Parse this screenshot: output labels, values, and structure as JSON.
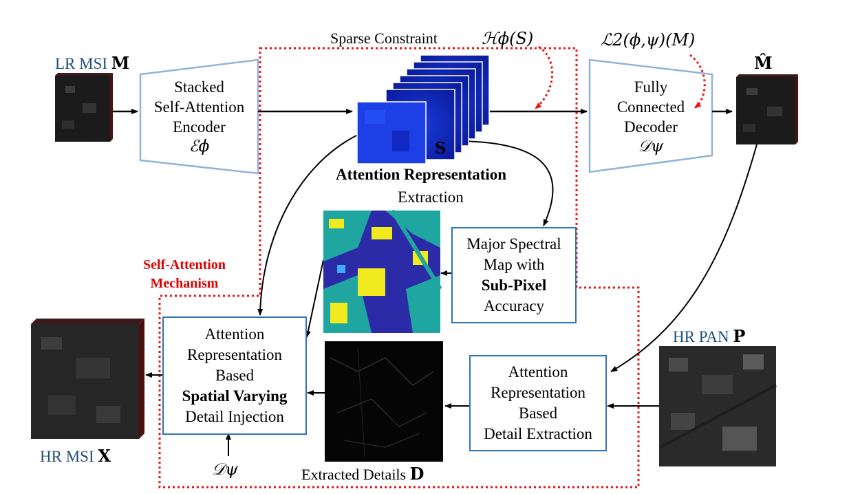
{
  "labels": {
    "lr_msi_text": "LR MSI",
    "lr_msi_symbol": "M",
    "sparse_constraint": "Sparse Constraint",
    "h_phi_s": "ℋϕ(S)",
    "loss": "ℒ2(ϕ,ψ)(M)",
    "m_hat": "M̂",
    "encoder_line1": "Stacked",
    "encoder_line2": "Self-Attention",
    "encoder_line3": "Encoder",
    "encoder_symbol": "ℰϕ",
    "s_symbol": "S",
    "attention_rep_bold": "Attention Representation",
    "extraction": "Extraction",
    "decoder_line1": "Fully",
    "decoder_line2": "Connected",
    "decoder_line3": "Decoder",
    "decoder_symbol": "𝒟ψ",
    "self_attention_mech_1": "Self-Attention",
    "self_attention_mech_2": "Mechanism",
    "major_line1": "Major Spectral",
    "major_line2": "Map with",
    "major_line3": "Sub-Pixel",
    "major_line4": "Accuracy",
    "injection_line1": "Attention",
    "injection_line2": "Representation",
    "injection_line3": "Based",
    "injection_line4": "Spatial Varying",
    "injection_line5": "Detail Injection",
    "detail_ex_line1": "Attention",
    "detail_ex_line2": "Representation",
    "detail_ex_line3": "Based",
    "detail_ex_line4": "Detail Extraction",
    "hr_pan_text": "HR PAN",
    "hr_pan_symbol": "P",
    "hr_msi_text": "HR MSI",
    "hr_msi_symbol": "X",
    "d_psi_bottom": "𝒟ψ",
    "extracted_details": "Extracted Details",
    "d_symbol": "D"
  },
  "colors": {
    "box_border": "#2e75b6",
    "label_blue": "#1f4e79",
    "dotted_red": "#ee1111",
    "mechanism_red": "#e00000"
  }
}
